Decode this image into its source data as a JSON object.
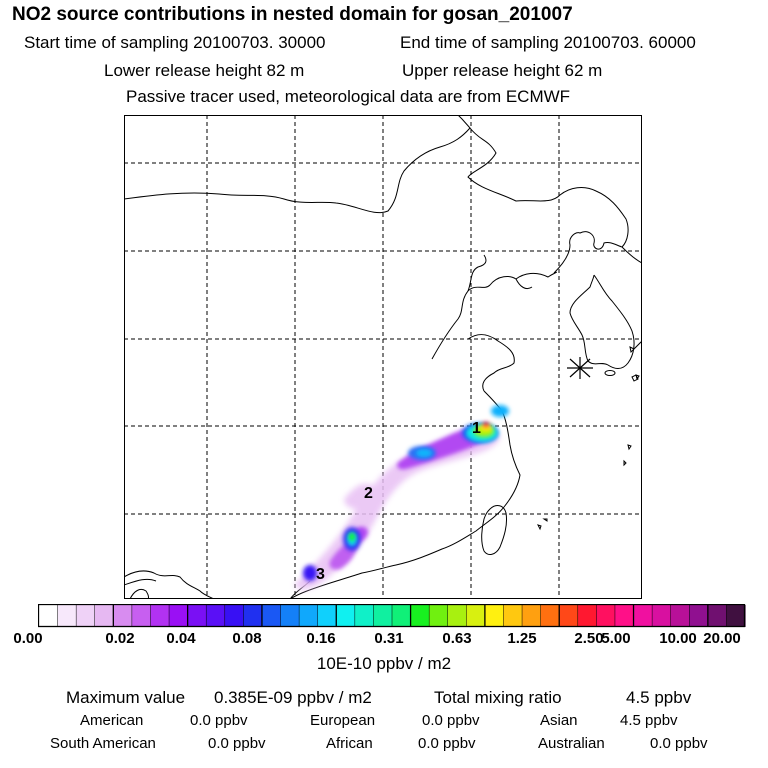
{
  "title": "NO2 source contributions in nested domain for gosan_201007",
  "sampling": {
    "start_label": "Start time of sampling 20100703. 30000",
    "end_label": "End time of sampling 20100703. 60000"
  },
  "release": {
    "lower_label": "Lower release height   82 m",
    "upper_label": "Upper release height   62 m"
  },
  "subtitle": "Passive tracer used, meteorological data are from ECMWF",
  "map": {
    "markers": [
      {
        "label": "1"
      },
      {
        "label": "2"
      },
      {
        "label": "3"
      }
    ],
    "receptor_symbol": "asterisk-icon"
  },
  "colorbar": {
    "ticks": [
      "0.00",
      "0.02",
      "0.04",
      "0.08",
      "0.16",
      "0.31",
      "0.63",
      "1.25",
      "2.50",
      "5.00",
      "10.00",
      "20.00"
    ],
    "colors": [
      "#ffffff",
      "#f7e8fb",
      "#efd2f7",
      "#e6b8f2",
      "#d88cf0",
      "#c75ff0",
      "#b232f2",
      "#9a10f4",
      "#7a10f4",
      "#5a10f6",
      "#3810f4",
      "#2030f0",
      "#1a58f4",
      "#1480f8",
      "#10a8fc",
      "#10d0fc",
      "#10f0f0",
      "#10f0c8",
      "#10f0a0",
      "#10f078",
      "#18f020",
      "#70f010",
      "#a8f010",
      "#d8f010",
      "#fff010",
      "#ffc810",
      "#ffa010",
      "#ff7010",
      "#ff4818",
      "#ff1830",
      "#ff1060",
      "#ff1088",
      "#f010a0",
      "#d810a0",
      "#b81098",
      "#901090",
      "#701070",
      "#401040"
    ],
    "units": "10E-10 ppbv / m2"
  },
  "summary": {
    "max_label": "Maximum value",
    "max_value": "0.385E-09 ppbv / m2",
    "total_label": "Total mixing ratio",
    "total_value": "4.5 ppbv",
    "regions": [
      {
        "name": "American",
        "value": "0.0 ppbv"
      },
      {
        "name": "European",
        "value": "0.0 ppbv"
      },
      {
        "name": "Asian",
        "value": "4.5 ppbv"
      },
      {
        "name": "South American",
        "value": "0.0 ppbv"
      },
      {
        "name": "African",
        "value": "0.0 ppbv"
      },
      {
        "name": "Australian",
        "value": "0.0 ppbv"
      }
    ]
  }
}
